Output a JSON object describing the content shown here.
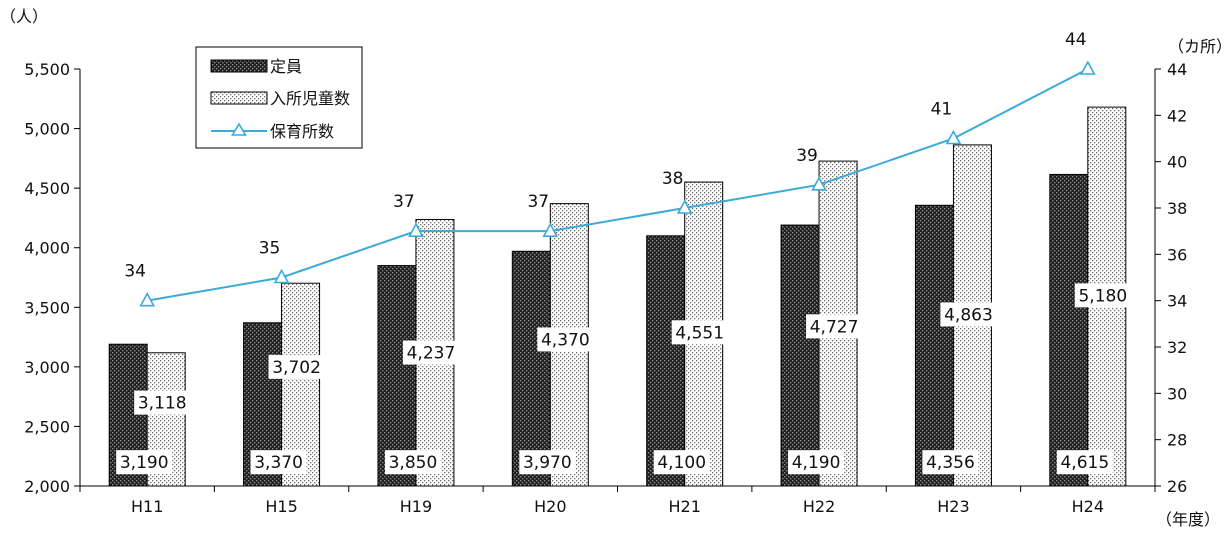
{
  "chart_data": {
    "type": "bar",
    "categories": [
      "H11",
      "H15",
      "H19",
      "H20",
      "H21",
      "H22",
      "H23",
      "H24"
    ],
    "series": [
      {
        "name": "定員",
        "kind": "bar",
        "axis": "left",
        "pattern": "dark-dots",
        "values": [
          3190,
          3370,
          3850,
          3970,
          4100,
          4190,
          4356,
          4615
        ],
        "labels": [
          "3,190",
          "3,370",
          "3,850",
          "3,970",
          "4,100",
          "4,190",
          "4,356",
          "4,615"
        ]
      },
      {
        "name": "入所児童数",
        "kind": "bar",
        "axis": "left",
        "pattern": "light-dots",
        "values": [
          3118,
          3702,
          4237,
          4370,
          4551,
          4727,
          4863,
          5180
        ],
        "labels": [
          "3,118",
          "3,702",
          "4,237",
          "4,370",
          "4,551",
          "4,727",
          "4,863",
          "5,180"
        ]
      },
      {
        "name": "保育所数",
        "kind": "line",
        "axis": "right",
        "marker": "triangle",
        "values": [
          34,
          35,
          37,
          37,
          38,
          39,
          41,
          44
        ],
        "labels": [
          "34",
          "35",
          "37",
          "37",
          "38",
          "39",
          "41",
          "44"
        ]
      }
    ],
    "y_left": {
      "unit": "（人）",
      "range": [
        2000,
        5500
      ],
      "ticks": [
        5500,
        5000,
        4500,
        4000,
        3500,
        3000,
        2500,
        2000
      ],
      "tick_labels": [
        "5,500",
        "5,000",
        "4,500",
        "4,000",
        "3,500",
        "3,000",
        "2,500",
        "2,000"
      ]
    },
    "y_right": {
      "unit": "（カ所）",
      "range": [
        26,
        44
      ],
      "ticks": [
        44,
        42,
        40,
        38,
        36,
        34,
        32,
        30,
        28,
        26
      ],
      "tick_labels": [
        "44",
        "42",
        "40",
        "38",
        "36",
        "34",
        "32",
        "30",
        "28",
        "26"
      ]
    },
    "x_unit": "（年度）",
    "grid": false,
    "legend_position": "top-left",
    "colors": {
      "line": "#3aaad8",
      "bar_dark": "#1e1e1e",
      "bar_light": "#ffffff"
    }
  }
}
